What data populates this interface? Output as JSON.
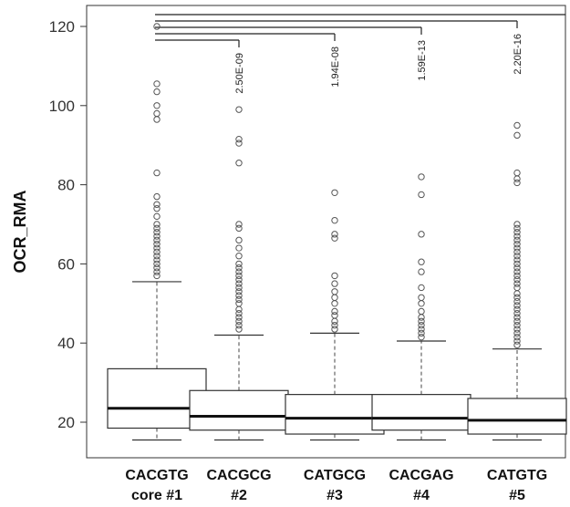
{
  "chart_data": {
    "type": "box",
    "ylabel": "OCR_RMA",
    "xlabel": "",
    "title": "",
    "ylim": [
      12,
      124
    ],
    "yticks": [
      20,
      40,
      60,
      80,
      100,
      120
    ],
    "grid": false,
    "categories": [
      {
        "line1": "CACGTG",
        "line2": "core #1"
      },
      {
        "line1": "CACGCG",
        "line2": "#2"
      },
      {
        "line1": "CATGCG",
        "line2": "#3"
      },
      {
        "line1": "CACGAG",
        "line2": "#4"
      },
      {
        "line1": "CATGTG",
        "line2": "#5"
      }
    ],
    "boxes": [
      {
        "min": 15.5,
        "q1": 18.5,
        "median": 23.5,
        "q3": 33.5,
        "max": 55.5,
        "outliers": [
          57,
          58,
          59,
          60,
          61,
          62,
          63,
          64,
          65,
          66,
          67,
          68,
          69,
          70,
          72,
          74,
          75,
          77,
          83,
          96.5,
          98,
          100,
          103.5,
          105.5,
          120
        ]
      },
      {
        "min": 15.5,
        "q1": 18,
        "median": 21.5,
        "q3": 28,
        "max": 42,
        "outliers": [
          43.5,
          44.5,
          45.5,
          46.5,
          47.5,
          48.5,
          50,
          51,
          52,
          53,
          54,
          55,
          56,
          57,
          58,
          59,
          60,
          62,
          64,
          66,
          69,
          70,
          85.5,
          90.5,
          91.5,
          99
        ]
      },
      {
        "min": 15.5,
        "q1": 17,
        "median": 21,
        "q3": 27,
        "max": 42.5,
        "outliers": [
          43.5,
          44.5,
          45.5,
          47,
          48,
          50,
          51.5,
          53,
          55,
          57,
          66.5,
          67.5,
          71,
          78
        ]
      },
      {
        "min": 15.5,
        "q1": 18,
        "median": 21,
        "q3": 27,
        "max": 40.5,
        "outliers": [
          41.5,
          42.5,
          43.5,
          44.5,
          45.5,
          46.5,
          48,
          50,
          51.5,
          54,
          58,
          60.5,
          67.5,
          77.5,
          82
        ]
      },
      {
        "min": 15.5,
        "q1": 17,
        "median": 20.5,
        "q3": 26,
        "max": 38.5,
        "outliers": [
          39.5,
          40.5,
          41.5,
          42.5,
          43.5,
          44.5,
          45.5,
          46.5,
          47.5,
          48.5,
          49.5,
          50.5,
          51.5,
          52.5,
          54,
          55,
          56,
          57,
          58,
          59,
          60,
          61,
          62,
          63,
          64,
          65,
          66,
          67,
          68,
          69,
          70,
          80.5,
          81.5,
          83,
          92.5,
          95
        ]
      }
    ],
    "comparisons": [
      {
        "from": 0,
        "to": 1,
        "pvalue": "2.50E-09"
      },
      {
        "from": 0,
        "to": 2,
        "pvalue": "1.94E-08"
      },
      {
        "from": 0,
        "to": 3,
        "pvalue": "1.59E-13"
      },
      {
        "from": 0,
        "to": 4,
        "pvalue": "2.20E-16"
      }
    ]
  }
}
